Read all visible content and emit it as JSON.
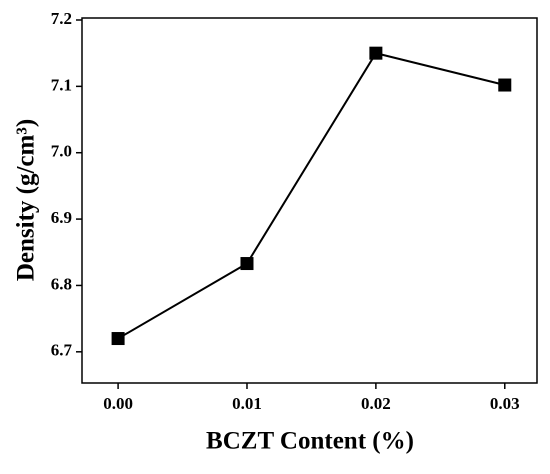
{
  "chart_data": {
    "type": "line",
    "x_label": "BCZT Content (%)",
    "y_label": "Density (g/cm³)",
    "x": [
      0,
      0.01,
      0.02,
      0.03
    ],
    "series": [
      {
        "color": "#000000",
        "values": [
          6.72,
          6.833,
          7.15,
          7.102
        ]
      }
    ],
    "xlim": [
      -0.0028,
      0.0325
    ],
    "xticks": [
      {
        "value": 0,
        "label": "0.00"
      },
      0.01,
      0.02,
      0.03
    ],
    "ylim": [
      6.653,
      7.203
    ],
    "yticks": [
      {
        "value": 6.7,
        "label": "6.7"
      },
      {
        "value": 6.8,
        "label": "6.8"
      },
      {
        "value": 6.9,
        "label": "6.9"
      },
      {
        "value": 7.0,
        "label": "7.0"
      },
      {
        "value": 7.1,
        "label": "7.1"
      },
      {
        "value": 7.2,
        "label": "7.2"
      }
    ],
    "marker": "square"
  }
}
